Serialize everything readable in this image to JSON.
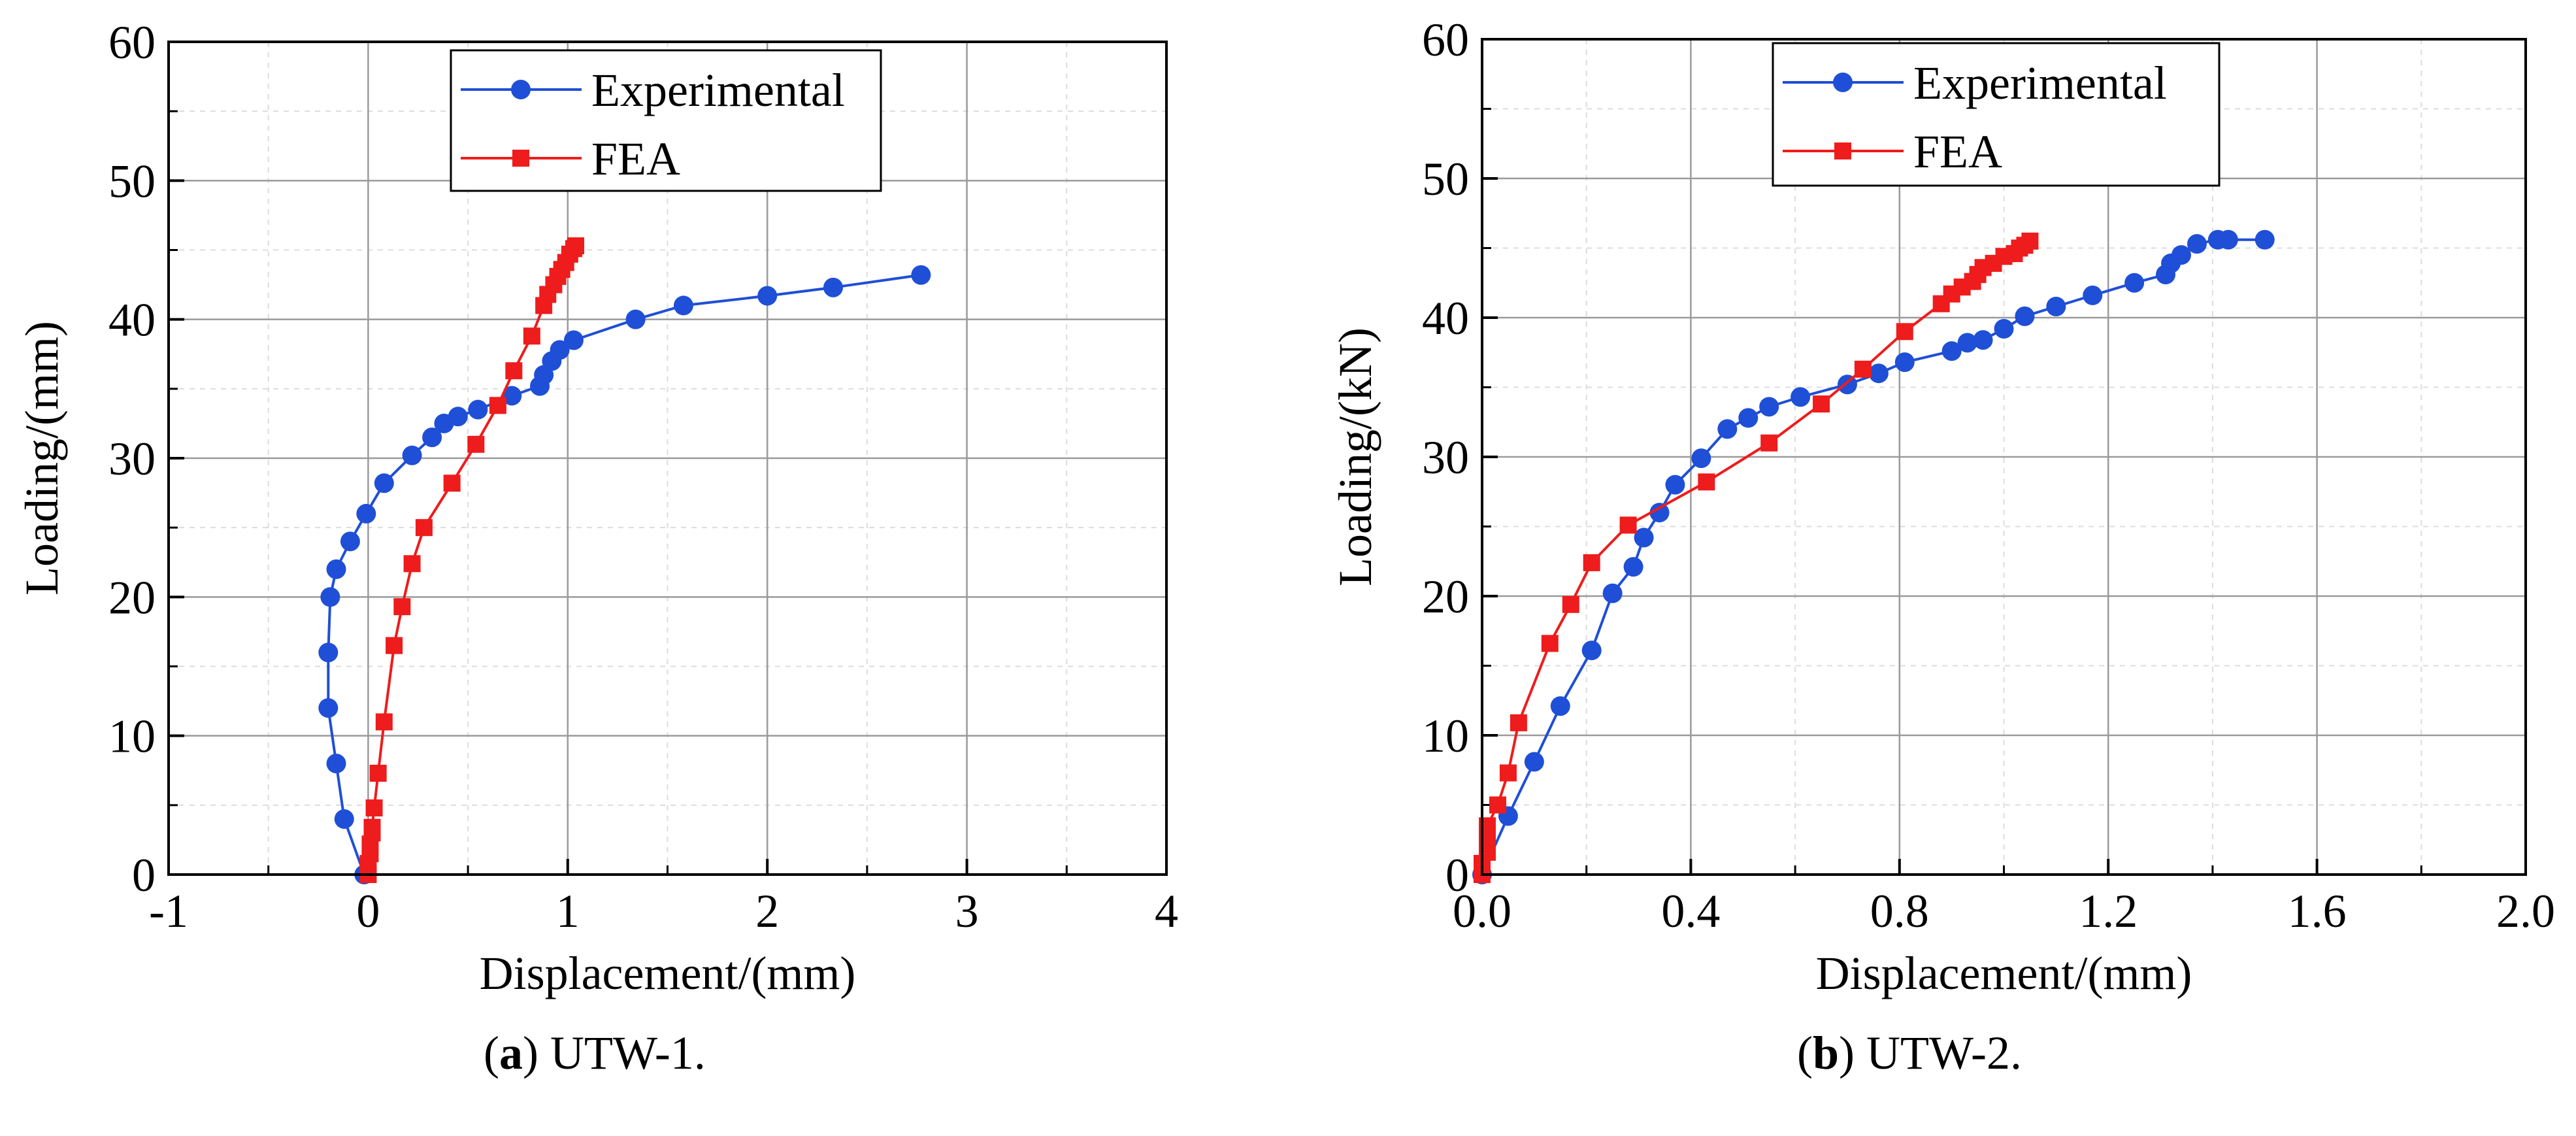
{
  "chart_data": [
    {
      "type": "line",
      "panel_label": "a",
      "caption": "UTW-1.",
      "xlabel": "Displacement/(mm)",
      "ylabel": "Loading/(mm)",
      "xlim": [
        -1,
        4
      ],
      "ylim": [
        0,
        60
      ],
      "xticks": [
        -1,
        0,
        1,
        2,
        3,
        4
      ],
      "xtick_labels": [
        "-1",
        "0",
        "1",
        "2",
        "3",
        "4"
      ],
      "yticks": [
        0,
        10,
        20,
        30,
        40,
        50,
        60
      ],
      "ytick_labels": [
        "0",
        "10",
        "20",
        "30",
        "40",
        "50",
        "60"
      ],
      "grid": true,
      "legend_position": "top-center",
      "series": [
        {
          "name": "Experimental",
          "color": "#1f4fd6",
          "marker": "circle",
          "x": [
            -0.02,
            -0.12,
            -0.16,
            -0.2,
            -0.2,
            -0.19,
            -0.16,
            -0.09,
            -0.01,
            0.08,
            0.22,
            0.32,
            0.38,
            0.45,
            0.55,
            0.72,
            0.86,
            0.88,
            0.92,
            0.96,
            1.03,
            1.34,
            1.58,
            2.0,
            2.33,
            2.77
          ],
          "y": [
            0,
            4,
            8,
            12,
            16,
            20,
            22,
            24,
            26,
            28.2,
            30.2,
            31.5,
            32.5,
            33,
            33.5,
            34.5,
            35.2,
            36,
            37,
            37.8,
            38.5,
            40,
            41,
            41.7,
            42.3,
            43.2
          ]
        },
        {
          "name": "FEA",
          "color": "#ee1c1c",
          "marker": "square",
          "x": [
            0,
            0,
            0.01,
            0.01,
            0.02,
            0.02,
            0.03,
            0.05,
            0.08,
            0.13,
            0.17,
            0.22,
            0.28,
            0.42,
            0.54,
            0.65,
            0.73,
            0.82,
            0.88,
            0.9,
            0.93,
            0.95,
            0.97,
            0.99,
            1.01,
            1.03,
            1.04
          ],
          "y": [
            0,
            0.8,
            1.5,
            2.2,
            3,
            3.4,
            4.8,
            7.3,
            11,
            16.5,
            19.3,
            22.4,
            25,
            28.2,
            31,
            33.8,
            36.3,
            38.8,
            41,
            41.8,
            42.5,
            43.1,
            43.6,
            44.1,
            44.7,
            45.1,
            45.3
          ]
        }
      ]
    },
    {
      "type": "line",
      "panel_label": "b",
      "caption": "UTW-2.",
      "xlabel": "Displacement/(mm)",
      "ylabel": "Loading/(kN)",
      "xlim": [
        0,
        2.0
      ],
      "ylim": [
        0,
        60
      ],
      "xticks": [
        0,
        0.4,
        0.8,
        1.2,
        1.6,
        2.0
      ],
      "xtick_labels": [
        "0.0",
        "0.4",
        "0.8",
        "1.2",
        "1.6",
        "2.0"
      ],
      "yticks": [
        0,
        10,
        20,
        30,
        40,
        50,
        60
      ],
      "ytick_labels": [
        "0",
        "10",
        "20",
        "30",
        "40",
        "50",
        "60"
      ],
      "grid": true,
      "legend_position": "top-center",
      "series": [
        {
          "name": "Experimental",
          "color": "#1f4fd6",
          "marker": "circle",
          "x": [
            0.0,
            0.05,
            0.1,
            0.15,
            0.21,
            0.25,
            0.29,
            0.31,
            0.34,
            0.37,
            0.42,
            0.47,
            0.51,
            0.55,
            0.61,
            0.7,
            0.76,
            0.81,
            0.9,
            0.93,
            0.96,
            1.0,
            1.04,
            1.1,
            1.17,
            1.25,
            1.31,
            1.32,
            1.34,
            1.37,
            1.41,
            1.43,
            1.5
          ],
          "y": [
            0,
            4.2,
            8.1,
            12.1,
            16.1,
            20.2,
            22.1,
            24.2,
            26,
            28,
            29.9,
            32,
            32.8,
            33.6,
            34.3,
            35.2,
            36,
            36.8,
            37.6,
            38.2,
            38.4,
            39.2,
            40.1,
            40.8,
            41.6,
            42.5,
            43.1,
            43.9,
            44.5,
            45.3,
            45.6,
            45.6,
            45.6
          ]
        },
        {
          "name": "FEA",
          "color": "#ee1c1c",
          "marker": "square",
          "x": [
            0.0,
            0.0,
            0.01,
            0.01,
            0.01,
            0.01,
            0.03,
            0.05,
            0.07,
            0.13,
            0.17,
            0.21,
            0.28,
            0.43,
            0.55,
            0.65,
            0.73,
            0.81,
            0.88,
            0.9,
            0.92,
            0.94,
            0.95,
            0.96,
            0.98,
            1.0,
            1.02,
            1.03,
            1.04,
            1.05
          ],
          "y": [
            0,
            0.8,
            1.6,
            2.4,
            3,
            3.5,
            5,
            7.3,
            10.9,
            16.6,
            19.4,
            22.4,
            25.1,
            28.2,
            31,
            33.8,
            36.3,
            39,
            41,
            41.7,
            42.2,
            42.6,
            43.1,
            43.6,
            43.9,
            44.4,
            44.6,
            45,
            45.2,
            45.5
          ]
        }
      ]
    }
  ]
}
